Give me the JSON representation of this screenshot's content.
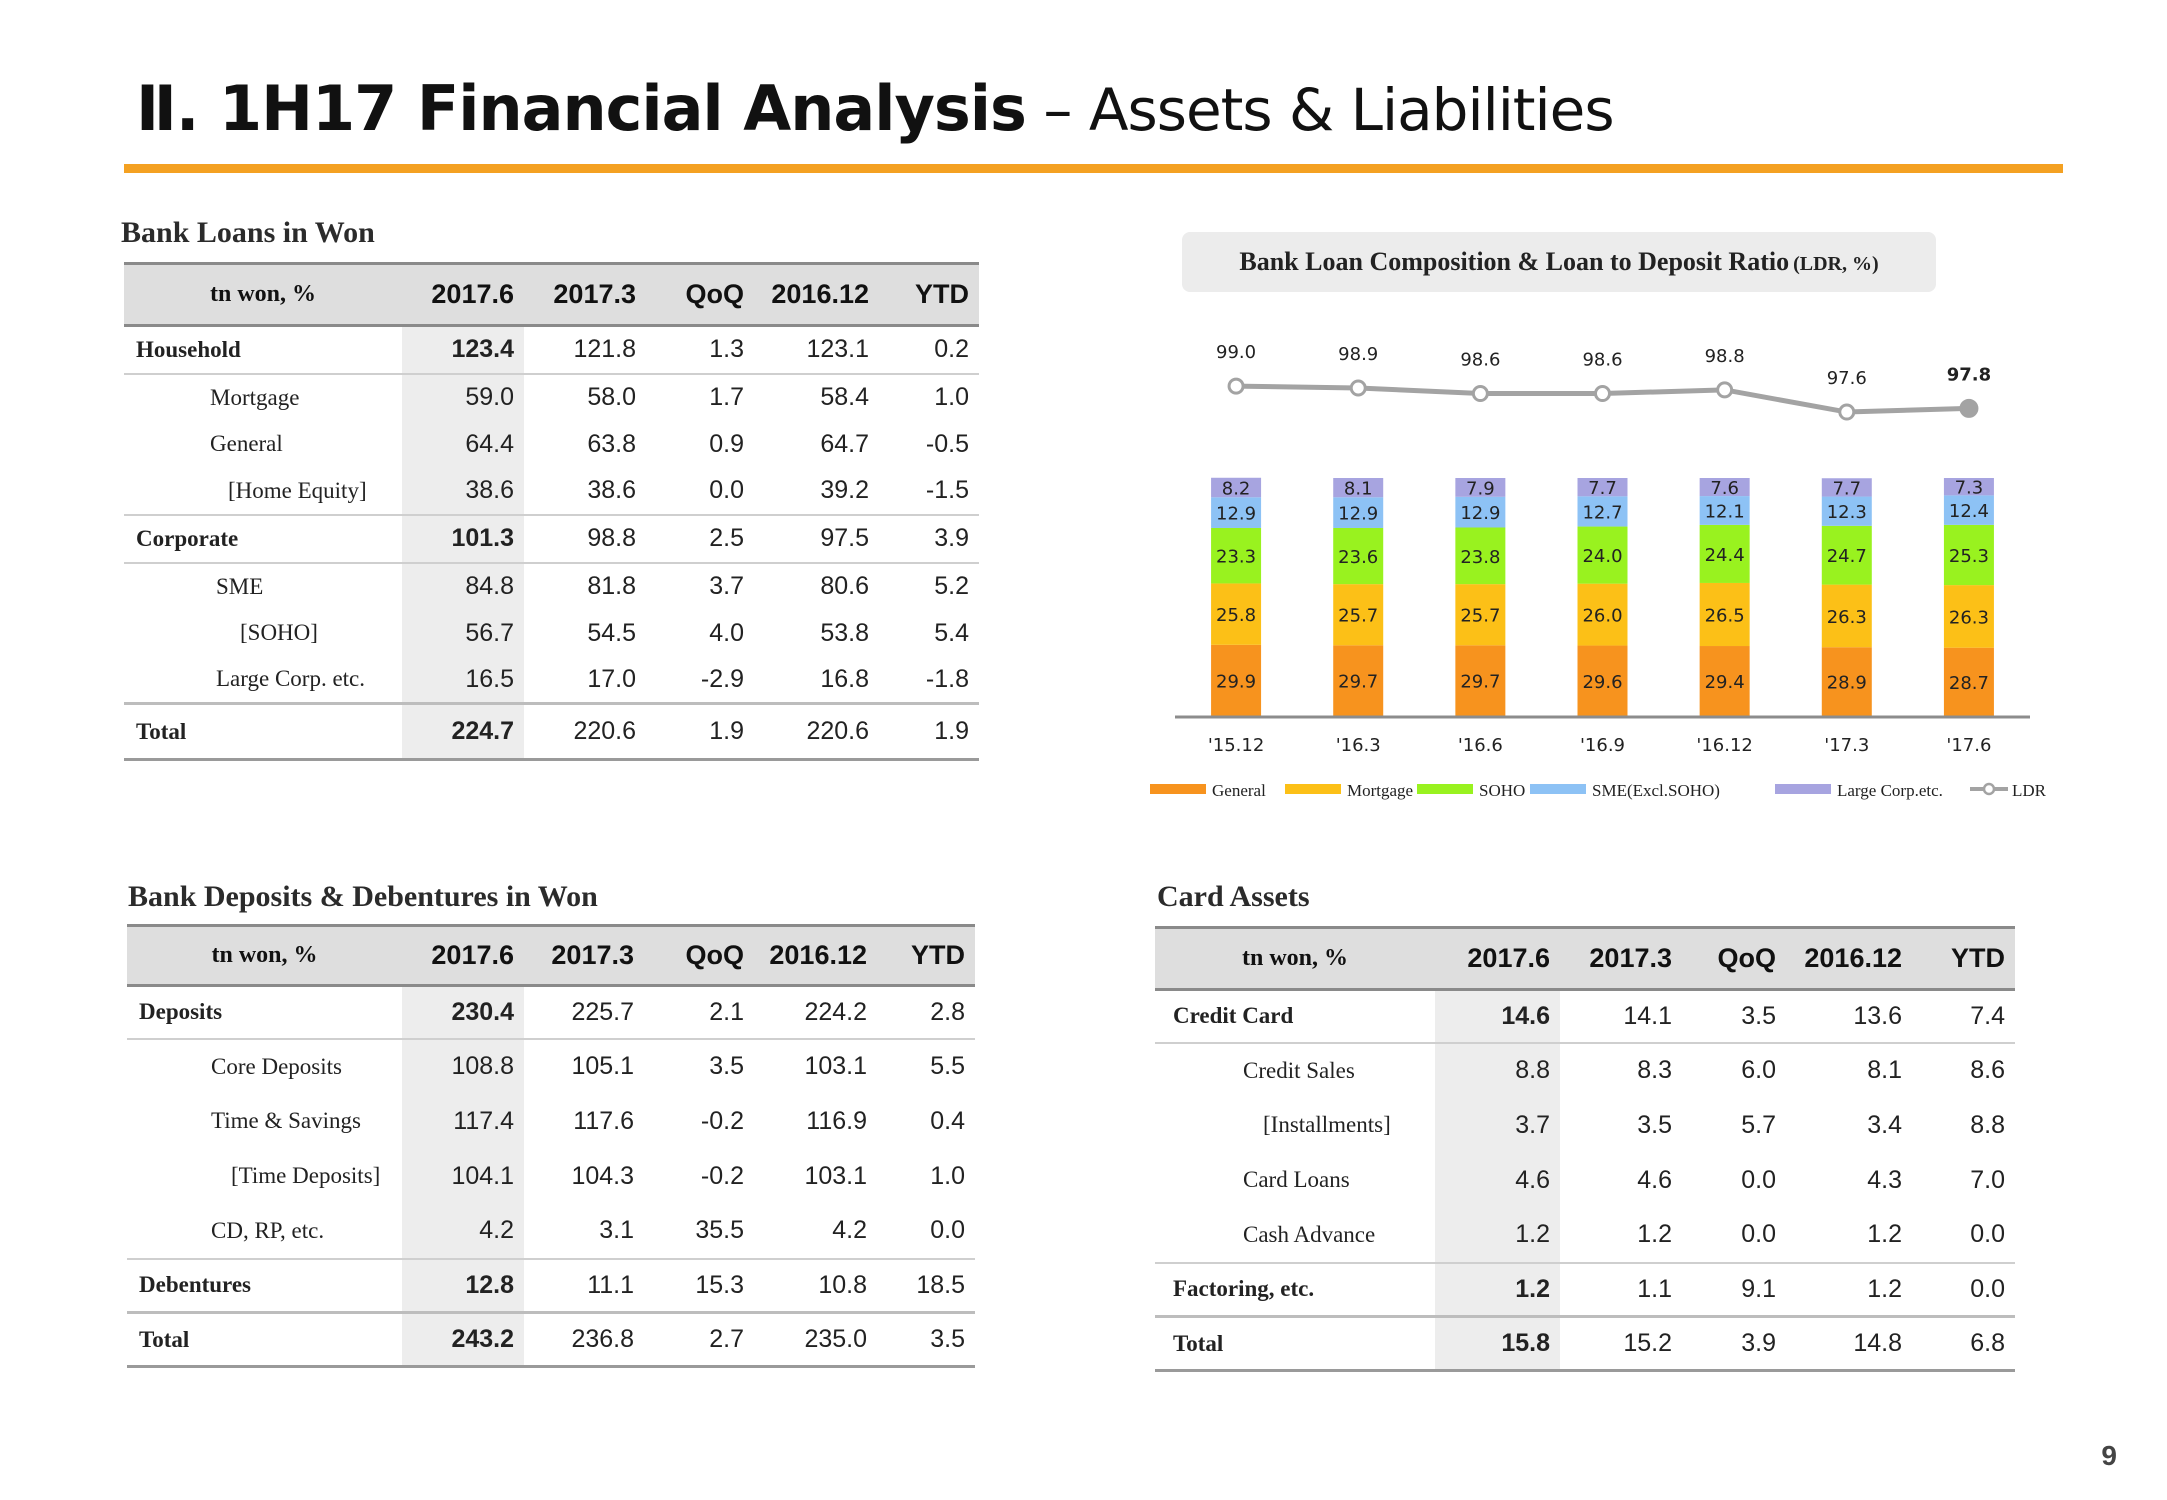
{
  "header": {
    "title_bold": "Ⅱ. 1H17 Financial Analysis",
    "title_light": " – Assets & Liabilities"
  },
  "page_number": "9",
  "loans": {
    "title": "Bank Loans in Won",
    "headers": [
      "tn won, %",
      "2017.6",
      "2017.3",
      "QoQ",
      "2016.12",
      "YTD"
    ],
    "rows": [
      {
        "label": "Household",
        "values": [
          "123.4",
          "121.8",
          "1.3",
          "123.1",
          "0.2"
        ]
      },
      {
        "label": "Mortgage",
        "values": [
          "59.0",
          "58.0",
          "1.7",
          "58.4",
          "1.0"
        ]
      },
      {
        "label": "General",
        "values": [
          "64.4",
          "63.8",
          "0.9",
          "64.7",
          "-0.5"
        ]
      },
      {
        "label": "[Home Equity]",
        "values": [
          "38.6",
          "38.6",
          "0.0",
          "39.2",
          "-1.5"
        ]
      },
      {
        "label": "Corporate",
        "values": [
          "101.3",
          "98.8",
          "2.5",
          "97.5",
          "3.9"
        ]
      },
      {
        "label": "SME",
        "values": [
          "84.8",
          "81.8",
          "3.7",
          "80.6",
          "5.2"
        ]
      },
      {
        "label": "[SOHO]",
        "values": [
          "56.7",
          "54.5",
          "4.0",
          "53.8",
          "5.4"
        ]
      },
      {
        "label": "Large Corp. etc.",
        "values": [
          "16.5",
          "17.0",
          "-2.9",
          "16.8",
          "-1.8"
        ]
      },
      {
        "label": "Total",
        "values": [
          "224.7",
          "220.6",
          "1.9",
          "220.6",
          "1.9"
        ]
      }
    ]
  },
  "deposits": {
    "title": "Bank Deposits & Debentures in Won",
    "headers": [
      "tn won, %",
      "2017.6",
      "2017.3",
      "QoQ",
      "2016.12",
      "YTD"
    ],
    "rows": [
      {
        "label": "Deposits",
        "values": [
          "230.4",
          "225.7",
          "2.1",
          "224.2",
          "2.8"
        ]
      },
      {
        "label": "Core Deposits",
        "values": [
          "108.8",
          "105.1",
          "3.5",
          "103.1",
          "5.5"
        ]
      },
      {
        "label": "Time & Savings",
        "values": [
          "117.4",
          "117.6",
          "-0.2",
          "116.9",
          "0.4"
        ]
      },
      {
        "label": "[Time Deposits]",
        "values": [
          "104.1",
          "104.3",
          "-0.2",
          "103.1",
          "1.0"
        ]
      },
      {
        "label": "CD, RP, etc.",
        "values": [
          "4.2",
          "3.1",
          "35.5",
          "4.2",
          "0.0"
        ]
      },
      {
        "label": "Debentures",
        "values": [
          "12.8",
          "11.1",
          "15.3",
          "10.8",
          "18.5"
        ]
      },
      {
        "label": "Total",
        "values": [
          "243.2",
          "236.8",
          "2.7",
          "235.0",
          "3.5"
        ]
      }
    ]
  },
  "card": {
    "title": "Card Assets",
    "headers": [
      "tn won, %",
      "2017.6",
      "2017.3",
      "QoQ",
      "2016.12",
      "YTD"
    ],
    "rows": [
      {
        "label": "Credit Card",
        "values": [
          "14.6",
          "14.1",
          "3.5",
          "13.6",
          "7.4"
        ]
      },
      {
        "label": "Credit Sales",
        "values": [
          "8.8",
          "8.3",
          "6.0",
          "8.1",
          "8.6"
        ]
      },
      {
        "label": "[Installments]",
        "values": [
          "3.7",
          "3.5",
          "5.7",
          "3.4",
          "8.8"
        ]
      },
      {
        "label": "Card Loans",
        "values": [
          "4.6",
          "4.6",
          "0.0",
          "4.3",
          "7.0"
        ]
      },
      {
        "label": "Cash Advance",
        "values": [
          "1.2",
          "1.2",
          "0.0",
          "1.2",
          "0.0"
        ]
      },
      {
        "label": "Factoring, etc.",
        "values": [
          "1.2",
          "1.1",
          "9.1",
          "1.2",
          "0.0"
        ]
      },
      {
        "label": "Total",
        "values": [
          "15.8",
          "15.2",
          "3.9",
          "14.8",
          "6.8"
        ]
      }
    ]
  },
  "chart_data": {
    "type": "bar",
    "stacked": true,
    "title": "Bank Loan Composition & Loan to Deposit Ratio",
    "title_unit": "(LDR, %)",
    "categories": [
      "'15.12",
      "'16.3",
      "'16.6",
      "'16.9",
      "'16.12",
      "'17.3",
      "'17.6"
    ],
    "series": [
      {
        "name": "General",
        "color": "#f7931e",
        "values": [
          29.9,
          29.7,
          29.7,
          29.6,
          29.4,
          28.9,
          28.7
        ]
      },
      {
        "name": "Mortgage",
        "color": "#fcc017",
        "values": [
          25.8,
          25.7,
          25.7,
          26.0,
          26.5,
          26.3,
          26.3
        ]
      },
      {
        "name": "SOHO",
        "color": "#99f21f",
        "values": [
          23.3,
          23.6,
          23.8,
          24.0,
          24.4,
          24.7,
          25.3
        ]
      },
      {
        "name": "SME(Excl.SOHO)",
        "color": "#8dc2f5",
        "values": [
          12.9,
          12.9,
          12.9,
          12.7,
          12.1,
          12.3,
          12.4
        ]
      },
      {
        "name": "Large Corp.etc.",
        "color": "#a7a4e0",
        "values": [
          8.2,
          8.1,
          7.9,
          7.7,
          7.6,
          7.7,
          7.3
        ]
      }
    ],
    "line": {
      "name": "LDR",
      "color": "#a3a3a3",
      "values": [
        99.0,
        98.9,
        98.6,
        98.6,
        98.8,
        97.6,
        97.8
      ]
    },
    "legend_position": "bottom"
  }
}
